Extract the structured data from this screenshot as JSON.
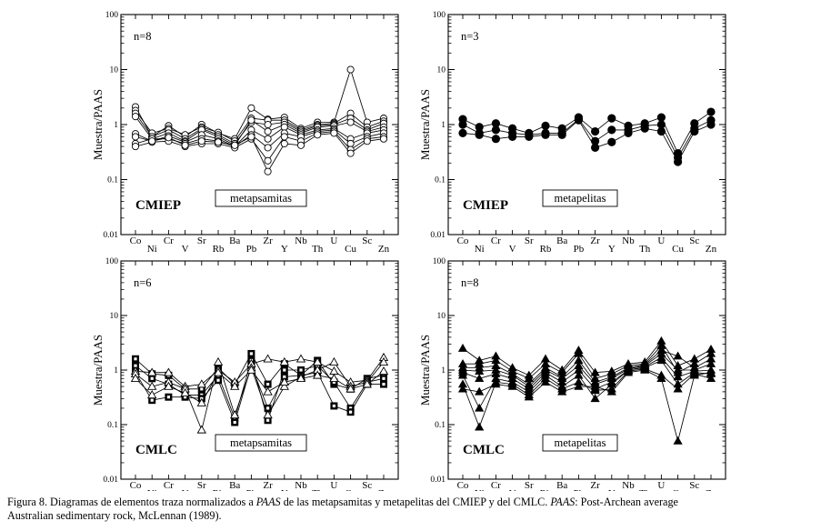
{
  "caption": {
    "p1": "Figura 8. Diagramas de elementos traza normalizados a ",
    "paas1": "PAAS",
    "p2": " de las metapsamitas y metapelitas del CMIEP y del CMLC. ",
    "paas2": "PAAS",
    "p3": ": Post-Archean average",
    "line2": "Australian sedimentary rock, McLennan (1989)."
  },
  "chart_data": [
    {
      "type": "line",
      "id": "cmiep-metapsamitas",
      "group": "CMIEP",
      "label": "metapsamitas",
      "n": "n=8",
      "marker": "circle-open",
      "ylabel": "Muestra/PAAS",
      "yscale": "log",
      "ylim": [
        0.01,
        100
      ],
      "yticks": [
        "100",
        "10",
        "1",
        "0.1",
        "0.01"
      ],
      "categories": [
        "Co",
        "Ni",
        "Cr",
        "V",
        "Sr",
        "Rb",
        "Ba",
        "Pb",
        "Zr",
        "Y",
        "Nb",
        "Th",
        "U",
        "Cu",
        "Sc",
        "Zn"
      ],
      "series": [
        {
          "name": "s1",
          "values": [
            2.1,
            0.6,
            0.95,
            0.6,
            1.0,
            0.7,
            0.55,
            2.0,
            1.25,
            1.35,
            0.85,
            1.1,
            1.1,
            10.0,
            1.1,
            1.3
          ]
        },
        {
          "name": "s2",
          "values": [
            1.8,
            0.7,
            0.85,
            0.65,
            0.9,
            0.72,
            0.5,
            1.3,
            1.2,
            1.2,
            0.8,
            1.0,
            1.05,
            1.6,
            0.9,
            1.15
          ]
        },
        {
          "name": "s3",
          "values": [
            1.6,
            0.6,
            0.8,
            0.55,
            0.85,
            0.65,
            0.45,
            1.1,
            1.0,
            1.1,
            0.75,
            0.95,
            1.0,
            1.3,
            0.8,
            1.05
          ]
        },
        {
          "name": "s4",
          "values": [
            1.4,
            0.55,
            0.7,
            0.5,
            0.8,
            0.6,
            0.42,
            1.2,
            0.75,
            1.0,
            0.7,
            0.9,
            0.95,
            1.1,
            0.75,
            0.9
          ]
        },
        {
          "name": "s5",
          "values": [
            0.68,
            0.5,
            0.62,
            0.48,
            0.65,
            0.55,
            0.4,
            0.8,
            0.55,
            0.9,
            0.65,
            0.8,
            0.85,
            0.55,
            0.7,
            0.8
          ]
        },
        {
          "name": "s6",
          "values": [
            0.45,
            0.55,
            0.55,
            0.45,
            0.55,
            0.5,
            0.4,
            0.65,
            0.38,
            0.7,
            0.6,
            0.75,
            0.8,
            0.45,
            0.6,
            0.7
          ]
        },
        {
          "name": "s7",
          "values": [
            0.4,
            0.48,
            0.5,
            0.4,
            0.45,
            0.45,
            0.38,
            0.55,
            0.22,
            0.6,
            0.5,
            0.7,
            0.75,
            0.35,
            0.55,
            0.6
          ]
        },
        {
          "name": "s8",
          "values": [
            0.6,
            0.5,
            0.58,
            0.42,
            0.5,
            0.48,
            0.42,
            0.6,
            0.14,
            0.45,
            0.42,
            0.65,
            0.7,
            0.3,
            0.5,
            0.55
          ]
        }
      ]
    },
    {
      "type": "line",
      "id": "cmiep-metapelitas",
      "group": "CMIEP",
      "label": "metapelitas",
      "n": "n=3",
      "marker": "circle-filled",
      "ylabel": "Muestra/PAAS",
      "yscale": "log",
      "ylim": [
        0.01,
        100
      ],
      "yticks": [
        "100",
        "10",
        "1",
        "0.1",
        "0.01"
      ],
      "categories": [
        "Co",
        "Ni",
        "Cr",
        "V",
        "Sr",
        "Rb",
        "Ba",
        "Pb",
        "Zr",
        "Y",
        "Nb",
        "Th",
        "U",
        "Cu",
        "Sc",
        "Zn"
      ],
      "series": [
        {
          "name": "s1",
          "values": [
            1.25,
            0.9,
            1.05,
            0.85,
            0.7,
            0.95,
            0.85,
            1.35,
            0.75,
            1.3,
            0.95,
            1.05,
            1.35,
            0.3,
            1.05,
            1.7
          ]
        },
        {
          "name": "s2",
          "values": [
            1.0,
            0.7,
            0.8,
            0.7,
            0.65,
            0.7,
            0.7,
            1.25,
            0.5,
            0.8,
            0.8,
            0.95,
            1.0,
            0.25,
            0.85,
            1.2
          ]
        },
        {
          "name": "s3",
          "values": [
            0.7,
            0.65,
            0.55,
            0.6,
            0.6,
            0.65,
            0.65,
            1.2,
            0.38,
            0.48,
            0.7,
            0.85,
            0.75,
            0.21,
            0.75,
            1.0
          ]
        }
      ]
    },
    {
      "type": "line",
      "id": "cmlc-metapsamitas",
      "group": "CMLC",
      "label": "metapsamitas",
      "n": "n=6",
      "marker": "mixed-square-triangle",
      "ylabel": "Muestra/PAAS",
      "yscale": "log",
      "ylim": [
        0.01,
        100
      ],
      "yticks": [
        "100",
        "10",
        "1",
        "0.1",
        "0.01"
      ],
      "categories": [
        "Co",
        "Ni",
        "Cr",
        "V",
        "Sr",
        "Rb",
        "Ba",
        "Pb",
        "Zr",
        "Y",
        "Nb",
        "Th",
        "U",
        "Cu",
        "Sc",
        "Zn"
      ],
      "series": [
        {
          "name": "s1",
          "marker": "square",
          "values": [
            1.6,
            0.85,
            0.8,
            0.45,
            0.45,
            1.1,
            0.55,
            2.0,
            0.55,
            1.3,
            0.8,
            1.5,
            0.55,
            0.45,
            0.7,
            0.8
          ]
        },
        {
          "name": "s2",
          "marker": "square",
          "values": [
            1.2,
            0.7,
            0.55,
            0.35,
            0.35,
            0.8,
            0.13,
            1.5,
            0.12,
            1.0,
            1.0,
            1.2,
            0.6,
            0.2,
            0.6,
            0.7
          ]
        },
        {
          "name": "s3",
          "marker": "square",
          "values": [
            0.9,
            0.28,
            0.32,
            0.32,
            0.3,
            0.65,
            0.11,
            1.2,
            0.2,
            0.75,
            0.8,
            0.9,
            0.22,
            0.17,
            0.55,
            0.55
          ]
        },
        {
          "name": "s4",
          "marker": "triangle",
          "values": [
            0.95,
            0.9,
            0.9,
            0.5,
            0.55,
            1.0,
            0.6,
            1.3,
            1.6,
            1.4,
            1.6,
            1.4,
            0.95,
            0.6,
            0.65,
            1.7
          ]
        },
        {
          "name": "s5",
          "marker": "triangle",
          "values": [
            0.85,
            0.5,
            0.6,
            0.45,
            0.08,
            1.4,
            0.15,
            1.1,
            0.15,
            0.5,
            0.75,
            1.0,
            1.4,
            0.5,
            0.6,
            1.4
          ]
        },
        {
          "name": "s6",
          "marker": "triangle",
          "values": [
            0.7,
            0.35,
            0.5,
            0.38,
            0.25,
            0.9,
            0.5,
            1.0,
            0.4,
            0.6,
            0.7,
            0.8,
            0.7,
            0.45,
            0.55,
            0.95
          ]
        }
      ]
    },
    {
      "type": "line",
      "id": "cmlc-metapelitas",
      "group": "CMLC",
      "label": "metapelitas",
      "n": "n=8",
      "marker": "triangle-filled",
      "ylabel": "Muestra/PAAS",
      "yscale": "log",
      "ylim": [
        0.01,
        100
      ],
      "yticks": [
        "100",
        "10",
        "1",
        "0.1",
        "0.01"
      ],
      "categories": [
        "Co",
        "Ni",
        "Cr",
        "V",
        "Sr",
        "Rb",
        "Ba",
        "Pb",
        "Zr",
        "Y",
        "Nb",
        "Th",
        "U",
        "Cu",
        "Sc",
        "Zn"
      ],
      "series": [
        {
          "name": "s1",
          "values": [
            2.5,
            1.5,
            1.8,
            1.1,
            0.8,
            1.6,
            1.0,
            2.3,
            0.9,
            0.95,
            1.3,
            1.4,
            3.4,
            1.2,
            1.6,
            2.4
          ]
        },
        {
          "name": "s2",
          "values": [
            1.3,
            1.3,
            1.5,
            0.95,
            0.7,
            1.3,
            0.9,
            2.0,
            0.7,
            0.85,
            1.2,
            1.3,
            2.8,
            0.9,
            1.3,
            2.0
          ]
        },
        {
          "name": "s3",
          "values": [
            1.1,
            1.1,
            1.2,
            0.85,
            0.55,
            1.1,
            0.75,
            1.5,
            0.6,
            0.75,
            1.1,
            1.25,
            2.3,
            1.8,
            1.1,
            1.6
          ]
        },
        {
          "name": "s4",
          "values": [
            1.0,
            0.95,
            1.0,
            0.8,
            0.5,
            1.0,
            0.7,
            1.2,
            0.55,
            0.7,
            1.05,
            1.2,
            2.0,
            1.0,
            1.0,
            1.3
          ]
        },
        {
          "name": "s5",
          "values": [
            0.9,
            0.7,
            0.85,
            0.7,
            0.45,
            0.9,
            0.6,
            1.0,
            0.45,
            0.6,
            1.0,
            1.15,
            1.7,
            0.75,
            0.95,
            1.0
          ]
        },
        {
          "name": "s6",
          "values": [
            0.8,
            0.2,
            0.7,
            0.6,
            0.4,
            0.8,
            0.5,
            0.8,
            0.3,
            0.55,
            1.0,
            1.1,
            1.5,
            0.55,
            0.9,
            0.85
          ]
        },
        {
          "name": "s7",
          "values": [
            0.55,
            0.09,
            0.6,
            0.55,
            0.35,
            0.7,
            0.45,
            0.6,
            0.42,
            0.45,
            0.95,
            1.05,
            0.8,
            0.45,
            0.85,
            0.7
          ]
        },
        {
          "name": "s8",
          "values": [
            0.45,
            0.4,
            0.55,
            0.5,
            0.32,
            0.6,
            0.4,
            0.5,
            0.5,
            0.4,
            0.9,
            1.0,
            0.7,
            0.05,
            0.8,
            0.9
          ]
        }
      ]
    }
  ]
}
